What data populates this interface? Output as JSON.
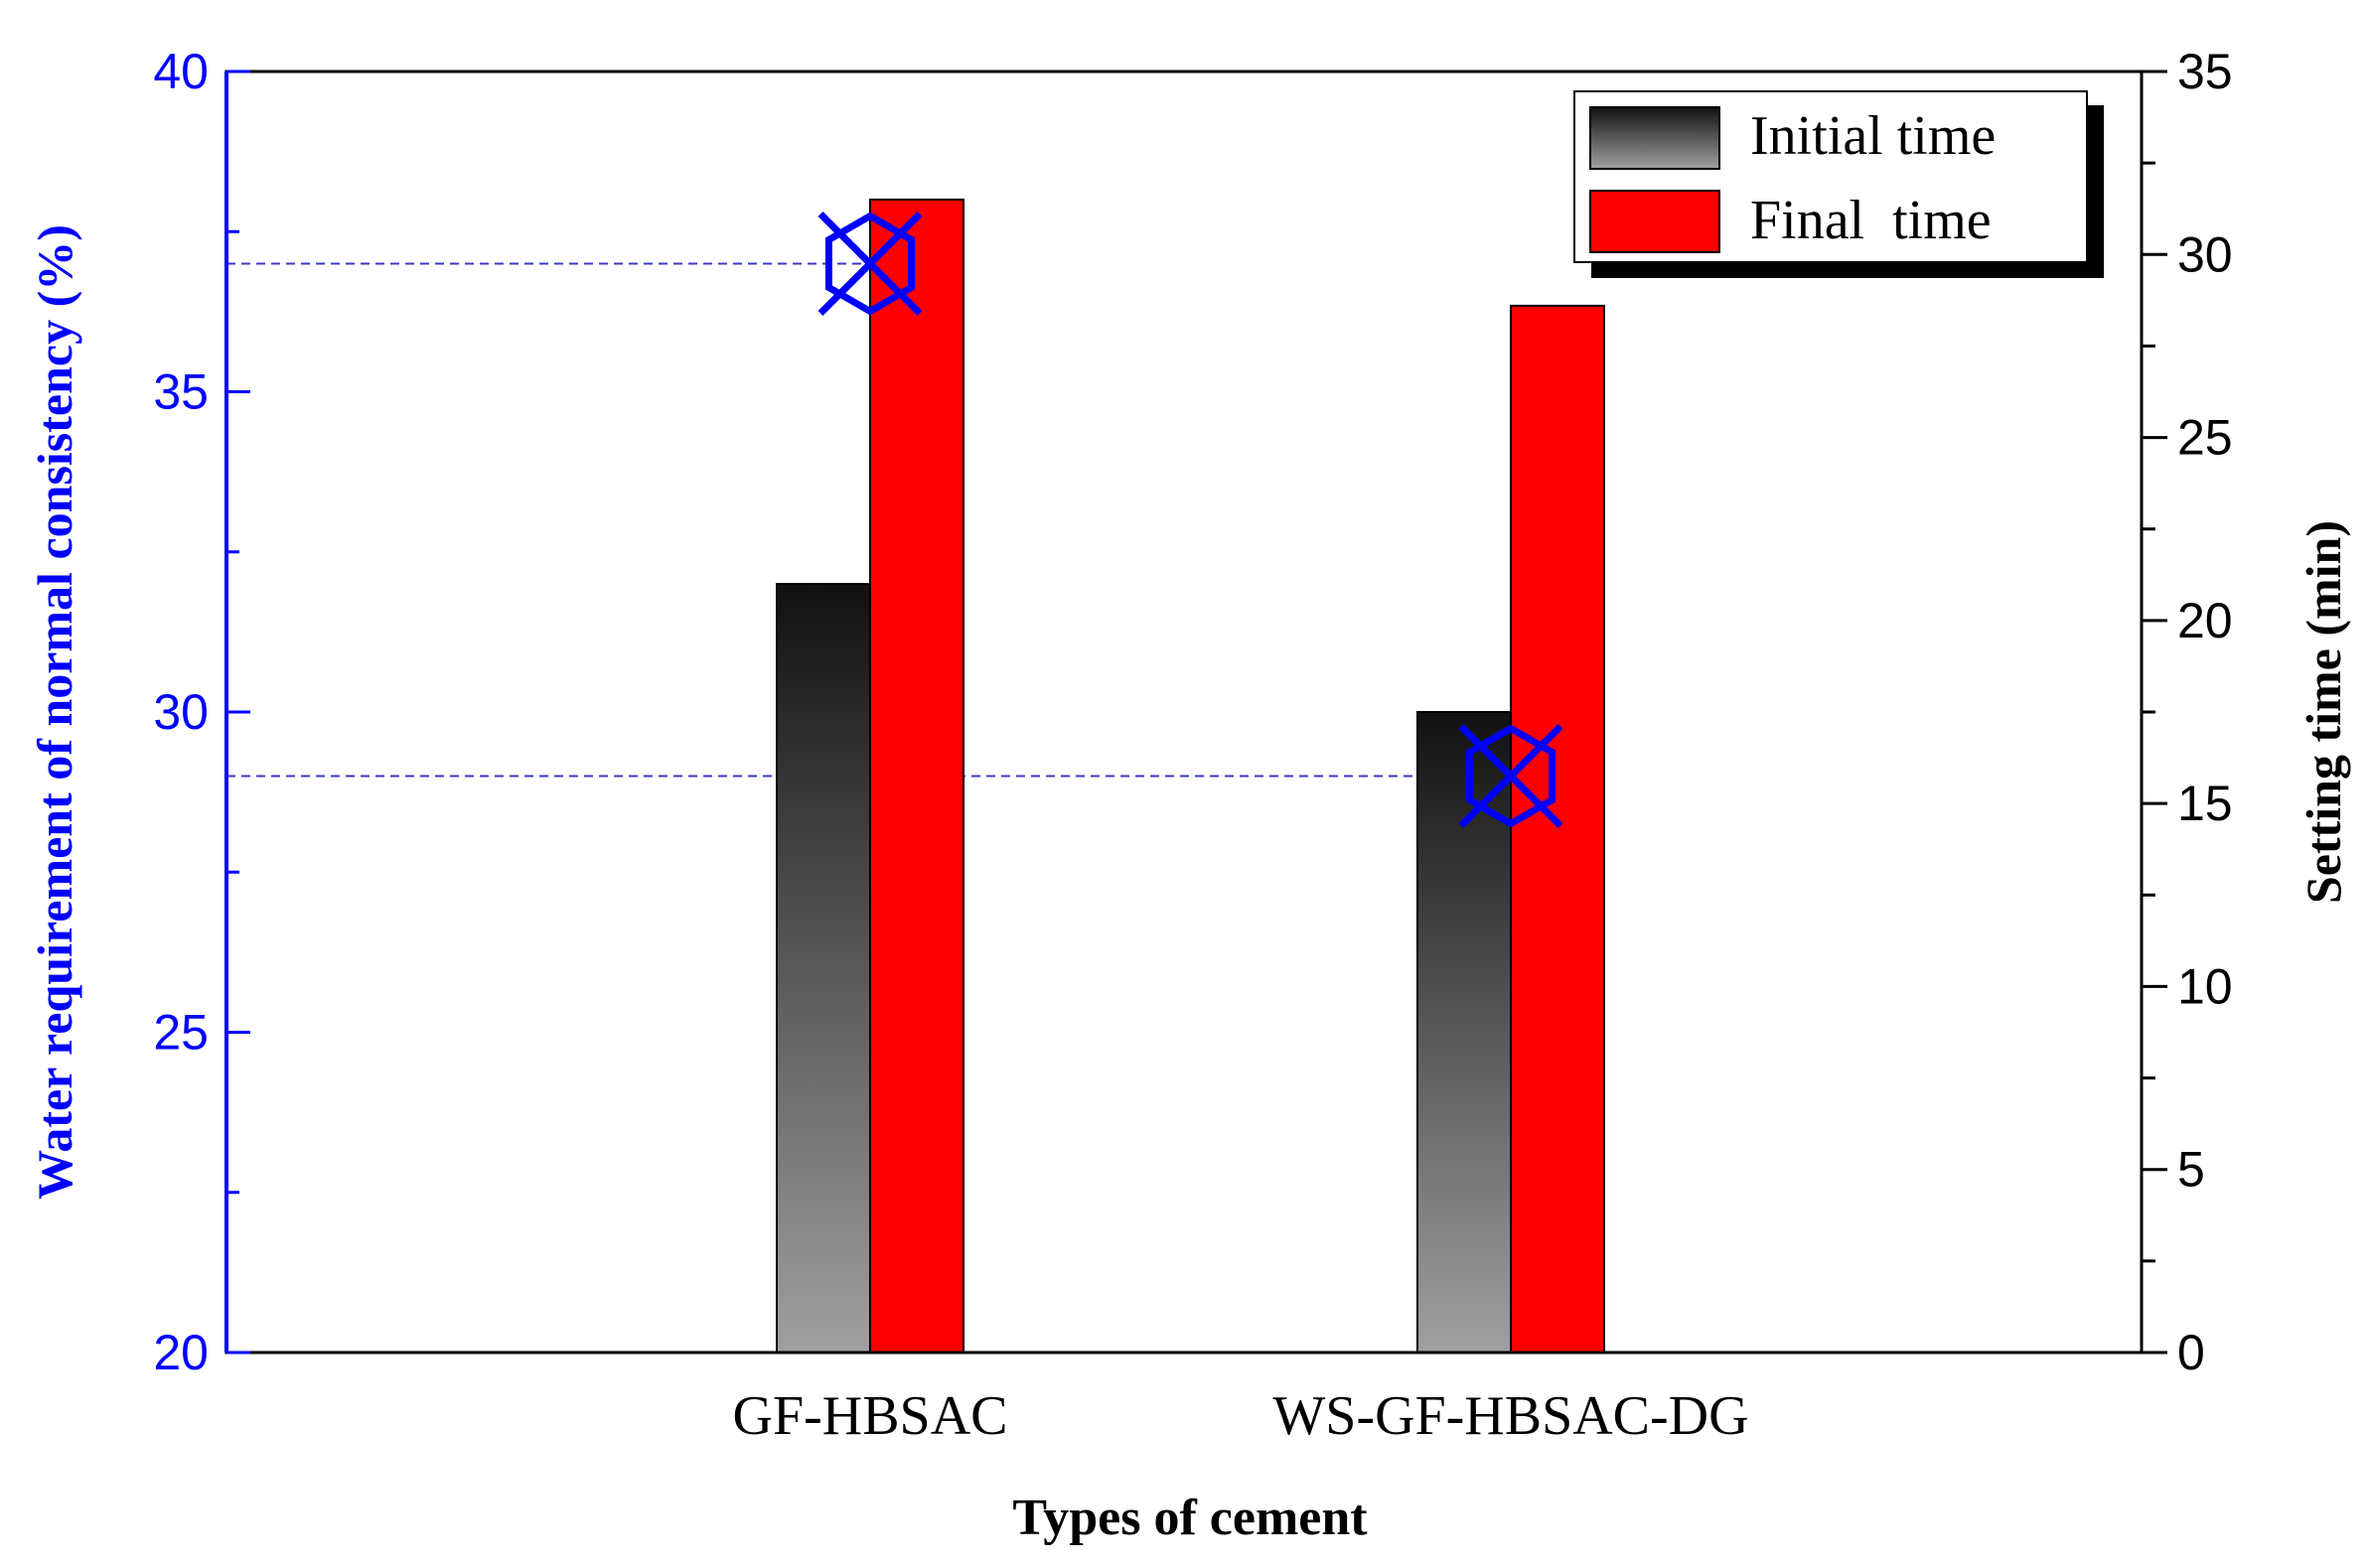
{
  "chart_data": {
    "type": "bar",
    "categories": [
      "GF-HBSAC",
      "WS-GF-HBSAC-DG"
    ],
    "xlabel": "Types of cement",
    "ylabel_left": "Water requirement of normal consistency (%)",
    "ylabel_right": "Setting time (min)",
    "ylim_left": [
      20,
      40
    ],
    "ylim_right": [
      0,
      35
    ],
    "left_ticks": [
      20,
      25,
      30,
      35,
      40
    ],
    "right_ticks": [
      0,
      5,
      10,
      15,
      20,
      25,
      30,
      35
    ],
    "series": [
      {
        "name": "Initial time",
        "axis": "right",
        "values": [
          21,
          17.5
        ]
      },
      {
        "name": "Final  time",
        "axis": "right",
        "values": [
          31.5,
          28.6
        ]
      }
    ],
    "water_requirement": {
      "axis": "left",
      "values": [
        37,
        29
      ],
      "reference_lines": true
    },
    "legend_position": "top-right",
    "colors": {
      "left_axis": "#0000ff",
      "initial_top": "#111111",
      "initial_bottom": "#a0a0a0",
      "final": "#ff0000",
      "marker": "#0000ff",
      "reference_line": "#3a3ac8"
    }
  }
}
